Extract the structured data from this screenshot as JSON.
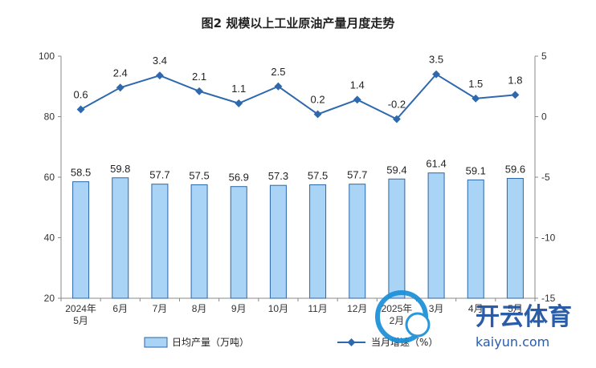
{
  "chart_data": {
    "type": "bar",
    "title": "图2  规模以上工业原油产量月度走势",
    "categories": [
      "2024年\n5月",
      "6月",
      "7月",
      "8月",
      "9月",
      "10月",
      "11月",
      "12月",
      "2025年\n2月",
      "3月",
      "4月",
      "5月"
    ],
    "series": [
      {
        "name": "日均产量（万吨）",
        "type": "bar",
        "axis": "left",
        "values": [
          58.5,
          59.8,
          57.7,
          57.5,
          56.9,
          57.3,
          57.5,
          57.7,
          59.4,
          61.4,
          59.1,
          59.6
        ]
      },
      {
        "name": "当月增速（%）",
        "type": "line",
        "axis": "right",
        "values": [
          0.6,
          2.4,
          3.4,
          2.1,
          1.1,
          2.5,
          0.2,
          1.4,
          -0.2,
          3.5,
          1.5,
          1.8
        ]
      }
    ],
    "y_left": {
      "min": 20,
      "max": 100,
      "ticks": [
        20,
        40,
        60,
        80,
        100
      ]
    },
    "y_right": {
      "min": -15,
      "max": 5,
      "ticks": [
        -15,
        -10,
        -5,
        0,
        5
      ]
    },
    "legend": "bottom",
    "grid": false,
    "colors": {
      "bar_fill": "#a9d4f5",
      "bar_stroke": "#2b66a8",
      "line": "#2e68ad"
    }
  },
  "watermark": {
    "text": "开云体育",
    "url": "kaiyun.com"
  }
}
